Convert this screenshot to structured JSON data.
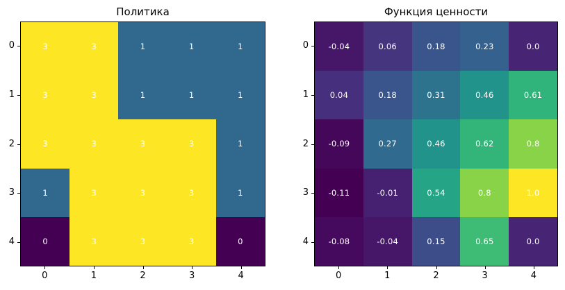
{
  "chart_data": [
    {
      "type": "heatmap",
      "title": "Политика",
      "colormap": "viridis",
      "vmin": 0,
      "vmax": 3,
      "grid": false,
      "x_tick_labels": [
        "0",
        "1",
        "2",
        "3",
        "4"
      ],
      "y_tick_labels": [
        "0",
        "1",
        "2",
        "3",
        "4"
      ],
      "values": [
        [
          3,
          3,
          1,
          1,
          1
        ],
        [
          3,
          3,
          1,
          1,
          1
        ],
        [
          3,
          3,
          3,
          3,
          1
        ],
        [
          1,
          3,
          3,
          3,
          1
        ],
        [
          0,
          3,
          3,
          3,
          0
        ]
      ],
      "cell_labels": [
        [
          "3",
          "3",
          "1",
          "1",
          "1"
        ],
        [
          "3",
          "3",
          "1",
          "1",
          "1"
        ],
        [
          "3",
          "3",
          "3",
          "3",
          "1"
        ],
        [
          "1",
          "3",
          "3",
          "3",
          "1"
        ],
        [
          "0",
          "3",
          "3",
          "3",
          "0"
        ]
      ]
    },
    {
      "type": "heatmap",
      "title": "Функция ценности",
      "colormap": "viridis",
      "vmin": -0.11,
      "vmax": 1.0,
      "grid": false,
      "x_tick_labels": [
        "0",
        "1",
        "2",
        "3",
        "4"
      ],
      "y_tick_labels": [
        "0",
        "1",
        "2",
        "3",
        "4"
      ],
      "values": [
        [
          -0.04,
          0.06,
          0.18,
          0.23,
          0.0
        ],
        [
          0.04,
          0.18,
          0.31,
          0.46,
          0.61
        ],
        [
          -0.09,
          0.27,
          0.46,
          0.62,
          0.8
        ],
        [
          -0.11,
          -0.01,
          0.54,
          0.8,
          1.0
        ],
        [
          -0.08,
          -0.04,
          0.15,
          0.65,
          0.0
        ]
      ],
      "cell_labels": [
        [
          "-0.04",
          "0.06",
          "0.18",
          "0.23",
          "0.0"
        ],
        [
          "0.04",
          "0.18",
          "0.31",
          "0.46",
          "0.61"
        ],
        [
          "-0.09",
          "0.27",
          "0.46",
          "0.62",
          "0.8"
        ],
        [
          "-0.11",
          "-0.01",
          "0.54",
          "0.8",
          "1.0"
        ],
        [
          "-0.08",
          "-0.04",
          "0.15",
          "0.65",
          "0.0"
        ]
      ]
    }
  ],
  "colors": {
    "background": "#ffffff",
    "spine": "#000000",
    "axis_text": "#000000",
    "cell_text": "#ffffff",
    "viridis_anchors": [
      "#440154",
      "#482878",
      "#3e4a89",
      "#31688e",
      "#26828e",
      "#1f9e89",
      "#35b779",
      "#6dcd59",
      "#b4de2c",
      "#fde725"
    ]
  }
}
